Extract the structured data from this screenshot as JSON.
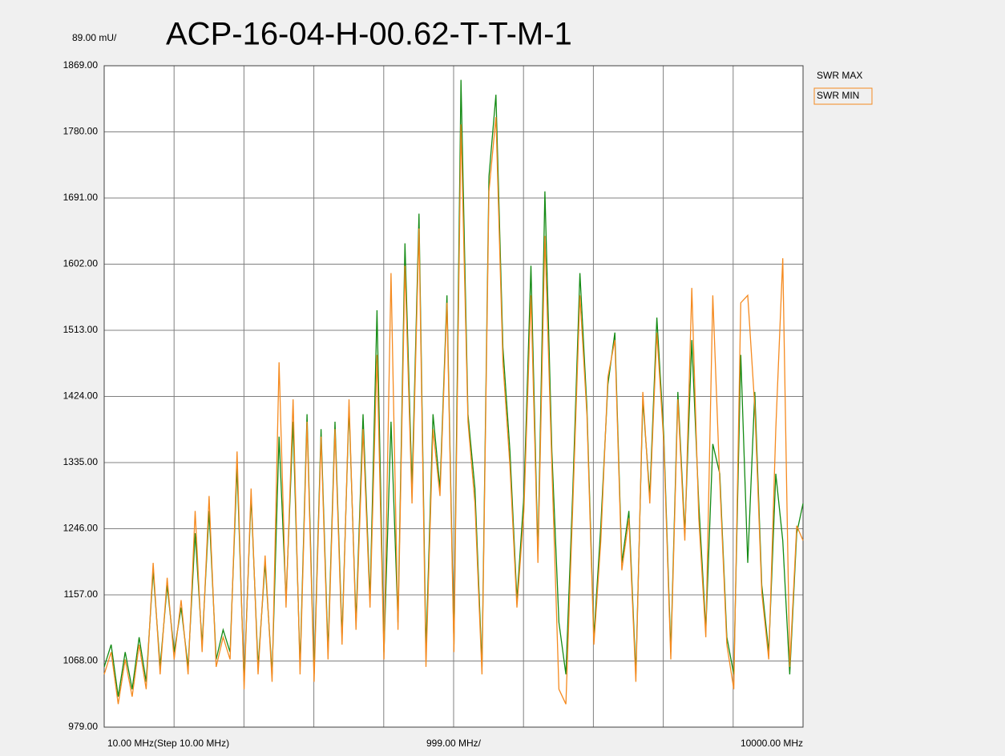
{
  "chart_data": {
    "type": "line",
    "title": "ACP-16-04-H-00.62-T-T-M-1",
    "y_scale_label": "89.00 mU/",
    "x_labels": [
      "10.00 MHz(Step 10.00 MHz)",
      "999.00 MHz/",
      "10000.00 MHz"
    ],
    "x": [
      10,
      110,
      210,
      310,
      410,
      510,
      610,
      710,
      810,
      910,
      1010,
      1110,
      1210,
      1310,
      1410,
      1510,
      1610,
      1710,
      1810,
      1910,
      2010,
      2110,
      2210,
      2310,
      2410,
      2510,
      2610,
      2710,
      2810,
      2910,
      3010,
      3110,
      3210,
      3310,
      3410,
      3510,
      3610,
      3710,
      3810,
      3910,
      4010,
      4110,
      4210,
      4310,
      4410,
      4510,
      4610,
      4710,
      4810,
      4910,
      5010,
      5110,
      5210,
      5310,
      5410,
      5510,
      5610,
      5710,
      5810,
      5910,
      6010,
      6110,
      6210,
      6310,
      6410,
      6510,
      6610,
      6710,
      6810,
      6910,
      7010,
      7110,
      7210,
      7310,
      7410,
      7510,
      7610,
      7710,
      7810,
      7910,
      8010,
      8110,
      8210,
      8310,
      8410,
      8510,
      8610,
      8710,
      8810,
      8910,
      9010,
      9110,
      9210,
      9310,
      9410,
      9510,
      9610,
      9710,
      9810,
      9910,
      10000
    ],
    "series": [
      {
        "name": "SWR MAX",
        "color": "#138a13",
        "values": [
          1060,
          1090,
          1020,
          1080,
          1030,
          1100,
          1040,
          1190,
          1060,
          1170,
          1080,
          1140,
          1060,
          1240,
          1090,
          1270,
          1070,
          1110,
          1080,
          1330,
          1040,
          1290,
          1060,
          1200,
          1050,
          1370,
          1150,
          1390,
          1060,
          1400,
          1050,
          1380,
          1080,
          1390,
          1100,
          1410,
          1120,
          1400,
          1150,
          1540,
          1080,
          1390,
          1120,
          1630,
          1300,
          1670,
          1080,
          1400,
          1300,
          1560,
          1090,
          1850,
          1400,
          1300,
          1060,
          1720,
          1830,
          1490,
          1350,
          1150,
          1290,
          1600,
          1210,
          1700,
          1350,
          1120,
          1050,
          1300,
          1590,
          1410,
          1100,
          1250,
          1440,
          1510,
          1200,
          1270,
          1050,
          1420,
          1290,
          1530,
          1370,
          1080,
          1430,
          1240,
          1500,
          1280,
          1110,
          1360,
          1320,
          1100,
          1050,
          1480,
          1200,
          1430,
          1170,
          1080,
          1320,
          1230,
          1050,
          1240,
          1280
        ]
      },
      {
        "name": "SWR MIN",
        "color": "#f58a1f",
        "values": [
          1050,
          1080,
          1010,
          1070,
          1020,
          1090,
          1030,
          1200,
          1050,
          1180,
          1070,
          1150,
          1050,
          1270,
          1080,
          1290,
          1060,
          1100,
          1070,
          1350,
          1030,
          1300,
          1050,
          1210,
          1040,
          1470,
          1140,
          1420,
          1050,
          1390,
          1040,
          1370,
          1070,
          1380,
          1090,
          1420,
          1110,
          1380,
          1140,
          1480,
          1070,
          1590,
          1110,
          1600,
          1280,
          1650,
          1060,
          1380,
          1290,
          1550,
          1080,
          1790,
          1390,
          1280,
          1050,
          1700,
          1800,
          1470,
          1330,
          1140,
          1270,
          1560,
          1200,
          1640,
          1330,
          1030,
          1010,
          1280,
          1560,
          1400,
          1090,
          1230,
          1450,
          1500,
          1190,
          1260,
          1040,
          1430,
          1280,
          1510,
          1360,
          1070,
          1420,
          1230,
          1570,
          1260,
          1100,
          1560,
          1310,
          1090,
          1030,
          1550,
          1560,
          1410,
          1160,
          1070,
          1380,
          1610,
          1060,
          1250,
          1230
        ]
      }
    ],
    "xlim": [
      10,
      10000
    ],
    "xticks": [
      10,
      1009,
      2008,
      3007,
      4006,
      5005,
      6004,
      7003,
      8002,
      9001,
      10000
    ],
    "ylim": [
      979,
      1869
    ],
    "yticks": [
      {
        "value": 979,
        "label": "979.00"
      },
      {
        "value": 1068,
        "label": "1068.00"
      },
      {
        "value": 1157,
        "label": "1157.00"
      },
      {
        "value": 1246,
        "label": "1246.00"
      },
      {
        "value": 1335,
        "label": "1335.00"
      },
      {
        "value": 1424,
        "label": "1424.00"
      },
      {
        "value": 1513,
        "label": "1513.00"
      },
      {
        "value": 1602,
        "label": "1602.00"
      },
      {
        "value": 1691,
        "label": "1691.00"
      },
      {
        "value": 1780,
        "label": "1780.00"
      },
      {
        "value": 1869,
        "label": "1869.00"
      }
    ],
    "grid": true
  }
}
